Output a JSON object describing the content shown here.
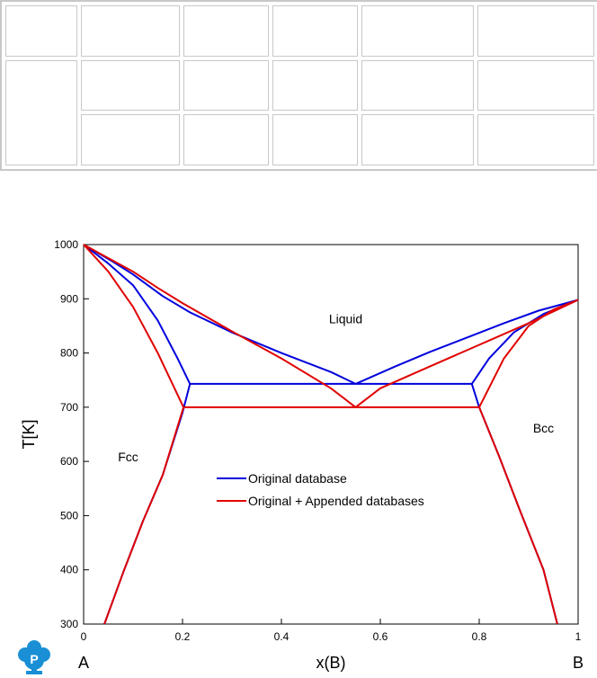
{
  "table": {
    "rows": [
      [
        "",
        "",
        "",
        "",
        "",
        ""
      ],
      [
        "",
        "",
        "",
        "",
        "",
        ""
      ],
      [
        "",
        "",
        "",
        "",
        ""
      ]
    ]
  },
  "chart_data": {
    "type": "line",
    "xlabel": "x(B)",
    "ylabel": "T[K]",
    "xlim": [
      0,
      1
    ],
    "ylim": [
      300,
      1000
    ],
    "xticks": [
      0,
      0.2,
      0.4,
      0.6,
      0.8,
      1
    ],
    "xtick_labels": [
      "0",
      "0.2",
      "0.4",
      "0.6",
      "0.8",
      "1"
    ],
    "yticks": [
      300,
      400,
      500,
      600,
      700,
      800,
      900,
      1000
    ],
    "ytick_labels": [
      "300",
      "400",
      "500",
      "600",
      "700",
      "800",
      "900",
      "1000"
    ],
    "grid": false,
    "legend_position": "center",
    "end_labels": {
      "left": "A",
      "right": "B"
    },
    "region_labels": [
      {
        "text": "Liquid",
        "x": 0.53,
        "y": 855
      },
      {
        "text": "Fcc",
        "x": 0.09,
        "y": 600
      },
      {
        "text": "Bcc",
        "x": 0.93,
        "y": 653
      }
    ],
    "series": [
      {
        "name": "Original database",
        "color": "#0000dd",
        "lines": [
          [
            [
              0,
              1000
            ],
            [
              0.06,
              968
            ],
            [
              0.1,
              945
            ],
            [
              0.16,
              905
            ],
            [
              0.215,
              875
            ],
            [
              0.3,
              838
            ],
            [
              0.4,
              800
            ],
            [
              0.5,
              765
            ],
            [
              0.55,
              743
            ]
          ],
          [
            [
              0,
              1000
            ],
            [
              0.05,
              965
            ],
            [
              0.1,
              925
            ],
            [
              0.15,
              860
            ],
            [
              0.19,
              790
            ],
            [
              0.215,
              743
            ]
          ],
          [
            [
              0.215,
              743
            ],
            [
              0.785,
              743
            ]
          ],
          [
            [
              0.55,
              743
            ],
            [
              0.63,
              775
            ],
            [
              0.7,
              802
            ],
            [
              0.785,
              832
            ],
            [
              0.85,
              855
            ],
            [
              0.92,
              878
            ],
            [
              1,
              898
            ]
          ],
          [
            [
              0.785,
              743
            ],
            [
              0.82,
              790
            ],
            [
              0.87,
              838
            ],
            [
              0.93,
              872
            ],
            [
              1,
              898
            ]
          ],
          [
            [
              0.042,
              300
            ],
            [
              0.08,
              395
            ],
            [
              0.12,
              490
            ],
            [
              0.16,
              575
            ],
            [
              0.2,
              690
            ],
            [
              0.215,
              743
            ]
          ],
          [
            [
              0.785,
              743
            ],
            [
              0.8,
              700
            ],
            [
              0.84,
              610
            ],
            [
              0.88,
              515
            ],
            [
              0.93,
              400
            ],
            [
              0.958,
              300
            ]
          ]
        ]
      },
      {
        "name": "Original + Appended databases",
        "color": "#e00000",
        "lines": [
          [
            [
              0,
              1000
            ],
            [
              0.05,
              975
            ],
            [
              0.1,
              950
            ],
            [
              0.15,
              920
            ],
            [
              0.2,
              892
            ],
            [
              0.3,
              840
            ],
            [
              0.4,
              790
            ],
            [
              0.5,
              735
            ],
            [
              0.55,
              700
            ]
          ],
          [
            [
              0,
              1000
            ],
            [
              0.05,
              950
            ],
            [
              0.1,
              885
            ],
            [
              0.15,
              800
            ],
            [
              0.202,
              700
            ]
          ],
          [
            [
              0.202,
              700
            ],
            [
              0.8,
              700
            ]
          ],
          [
            [
              0.55,
              700
            ],
            [
              0.6,
              735
            ],
            [
              0.7,
              775
            ],
            [
              0.8,
              815
            ],
            [
              0.9,
              855
            ],
            [
              1,
              898
            ]
          ],
          [
            [
              0.8,
              700
            ],
            [
              0.85,
              790
            ],
            [
              0.9,
              850
            ],
            [
              0.95,
              880
            ],
            [
              1,
              898
            ]
          ],
          [
            [
              0.042,
              300
            ],
            [
              0.08,
              395
            ],
            [
              0.12,
              490
            ],
            [
              0.16,
              575
            ],
            [
              0.202,
              700
            ]
          ],
          [
            [
              0.8,
              700
            ],
            [
              0.84,
              610
            ],
            [
              0.88,
              515
            ],
            [
              0.93,
              400
            ],
            [
              0.958,
              300
            ]
          ]
        ]
      }
    ]
  }
}
